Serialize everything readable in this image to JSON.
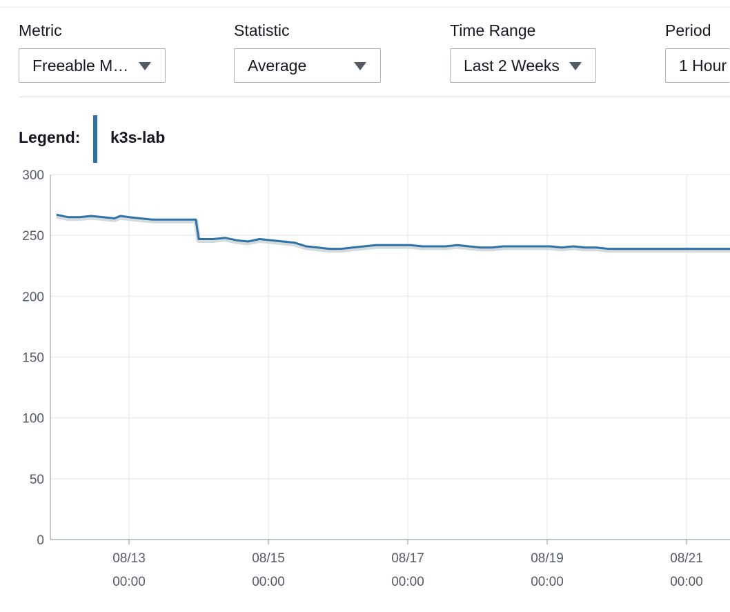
{
  "controls": {
    "metric": {
      "label": "Metric",
      "value": "Freeable M…"
    },
    "statistic": {
      "label": "Statistic",
      "value": "Average"
    },
    "time_range": {
      "label": "Time Range",
      "value": "Last 2 Weeks"
    },
    "period": {
      "label": "Period",
      "value": "1 Hour"
    }
  },
  "legend": {
    "title": "Legend:",
    "entry": "k3s-lab",
    "color": "#2e73a8"
  },
  "chart_data": {
    "type": "line",
    "ylim": [
      0,
      300
    ],
    "y_ticks": [
      0,
      50,
      100,
      150,
      200,
      250,
      300
    ],
    "x_ticks": [
      {
        "date": "08/13",
        "time": "00:00"
      },
      {
        "date": "08/15",
        "time": "00:00"
      },
      {
        "date": "08/17",
        "time": "00:00"
      },
      {
        "date": "08/19",
        "time": "00:00"
      },
      {
        "date": "08/21",
        "time": "00:00"
      }
    ],
    "grid": true,
    "series": [
      {
        "name": "k3s-lab",
        "color": "#2e73a8",
        "points": [
          [
            "2024-08-11 23:00",
            267
          ],
          [
            "2024-08-12 03:00",
            265
          ],
          [
            "2024-08-12 07:00",
            265
          ],
          [
            "2024-08-12 11:00",
            266
          ],
          [
            "2024-08-12 15:00",
            265
          ],
          [
            "2024-08-12 19:00",
            264
          ],
          [
            "2024-08-12 21:00",
            266
          ],
          [
            "2024-08-13 00:00",
            265
          ],
          [
            "2024-08-13 04:00",
            264
          ],
          [
            "2024-08-13 08:00",
            263
          ],
          [
            "2024-08-13 12:00",
            263
          ],
          [
            "2024-08-13 16:00",
            263
          ],
          [
            "2024-08-13 20:00",
            263
          ],
          [
            "2024-08-13 23:00",
            263
          ],
          [
            "2024-08-14 00:00",
            247
          ],
          [
            "2024-08-14 05:00",
            247
          ],
          [
            "2024-08-14 09:00",
            248
          ],
          [
            "2024-08-14 13:00",
            246
          ],
          [
            "2024-08-14 17:00",
            245
          ],
          [
            "2024-08-14 21:00",
            247
          ],
          [
            "2024-08-15 01:00",
            246
          ],
          [
            "2024-08-15 05:00",
            245
          ],
          [
            "2024-08-15 09:00",
            244
          ],
          [
            "2024-08-15 13:00",
            241
          ],
          [
            "2024-08-15 17:00",
            240
          ],
          [
            "2024-08-15 21:00",
            239
          ],
          [
            "2024-08-16 01:00",
            239
          ],
          [
            "2024-08-16 05:00",
            240
          ],
          [
            "2024-08-16 09:00",
            241
          ],
          [
            "2024-08-16 13:00",
            242
          ],
          [
            "2024-08-16 17:00",
            242
          ],
          [
            "2024-08-16 21:00",
            242
          ],
          [
            "2024-08-17 01:00",
            242
          ],
          [
            "2024-08-17 05:00",
            241
          ],
          [
            "2024-08-17 09:00",
            241
          ],
          [
            "2024-08-17 13:00",
            241
          ],
          [
            "2024-08-17 17:00",
            242
          ],
          [
            "2024-08-17 21:00",
            241
          ],
          [
            "2024-08-18 01:00",
            240
          ],
          [
            "2024-08-18 05:00",
            240
          ],
          [
            "2024-08-18 09:00",
            241
          ],
          [
            "2024-08-18 13:00",
            241
          ],
          [
            "2024-08-18 17:00",
            241
          ],
          [
            "2024-08-18 21:00",
            241
          ],
          [
            "2024-08-19 01:00",
            241
          ],
          [
            "2024-08-19 05:00",
            240
          ],
          [
            "2024-08-19 09:00",
            241
          ],
          [
            "2024-08-19 13:00",
            240
          ],
          [
            "2024-08-19 17:00",
            240
          ],
          [
            "2024-08-19 21:00",
            239
          ],
          [
            "2024-08-20 01:00",
            239
          ],
          [
            "2024-08-20 05:00",
            239
          ],
          [
            "2024-08-20 09:00",
            239
          ],
          [
            "2024-08-20 13:00",
            239
          ],
          [
            "2024-08-20 17:00",
            239
          ],
          [
            "2024-08-20 21:00",
            239
          ],
          [
            "2024-08-21 01:00",
            239
          ],
          [
            "2024-08-21 05:00",
            239
          ],
          [
            "2024-08-21 09:00",
            239
          ],
          [
            "2024-08-21 13:00",
            239
          ],
          [
            "2024-08-21 16:00",
            239
          ]
        ]
      }
    ]
  }
}
